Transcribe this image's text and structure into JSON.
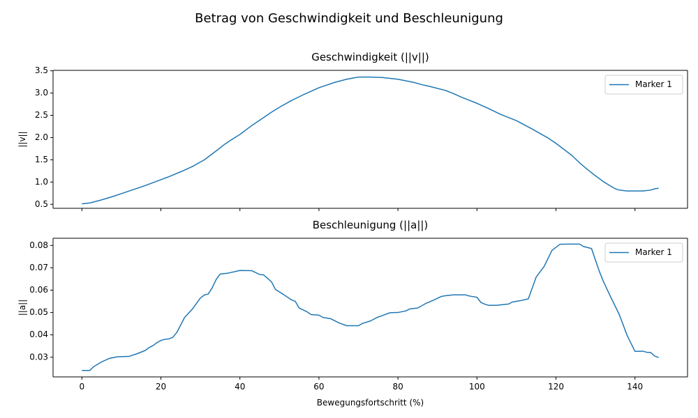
{
  "figure": {
    "suptitle": "Betrag von Geschwindigkeit und Beschleunigung",
    "line_color": "#1f77b4"
  },
  "chart_data": [
    {
      "type": "line",
      "title": "Geschwindigkeit (||v||)",
      "xlabel": "",
      "ylabel": "||v||",
      "xlim": [
        -7.3,
        153.3
      ],
      "ylim": [
        0.41,
        3.51
      ],
      "xticks": [
        0,
        20,
        40,
        60,
        80,
        100,
        120,
        140
      ],
      "xtick_labels_visible": false,
      "yticks": [
        0.5,
        1.0,
        1.5,
        2.0,
        2.5,
        3.0,
        3.5
      ],
      "ytick_labels": [
        "0.5",
        "1.0",
        "1.5",
        "2.0",
        "2.5",
        "3.0",
        "3.5"
      ],
      "legend": "top-right",
      "series": [
        {
          "name": "Marker 1",
          "x": [
            0,
            2,
            5,
            8,
            10,
            13,
            16,
            19,
            22,
            25,
            28,
            31,
            34,
            36,
            38,
            40,
            43,
            46,
            48,
            50,
            53,
            56,
            60,
            64,
            67,
            70,
            73,
            76,
            80,
            84,
            86,
            88,
            92,
            94,
            96,
            98,
            100,
            103,
            106,
            110,
            114,
            118,
            120,
            124,
            126,
            128,
            130,
            132,
            134,
            135,
            136,
            138,
            142,
            144,
            145,
            146
          ],
          "y": [
            0.51,
            0.53,
            0.6,
            0.68,
            0.74,
            0.83,
            0.92,
            1.02,
            1.12,
            1.23,
            1.35,
            1.5,
            1.7,
            1.84,
            1.96,
            2.07,
            2.27,
            2.45,
            2.57,
            2.68,
            2.83,
            2.96,
            3.12,
            3.24,
            3.31,
            3.36,
            3.36,
            3.35,
            3.31,
            3.24,
            3.19,
            3.15,
            3.06,
            2.99,
            2.91,
            2.84,
            2.77,
            2.65,
            2.52,
            2.38,
            2.19,
            1.99,
            1.87,
            1.6,
            1.43,
            1.28,
            1.14,
            1.01,
            0.9,
            0.85,
            0.82,
            0.8,
            0.8,
            0.82,
            0.85,
            0.86
          ]
        }
      ]
    },
    {
      "type": "line",
      "title": "Beschleunigung (||a||)",
      "xlabel": "Bewegungsfortschritt (%)",
      "ylabel": "||a||",
      "xlim": [
        -7.3,
        153.3
      ],
      "ylim": [
        0.0212,
        0.0832
      ],
      "xticks": [
        0,
        20,
        40,
        60,
        80,
        100,
        120,
        140
      ],
      "xtick_labels": [
        "0",
        "20",
        "40",
        "60",
        "80",
        "100",
        "120",
        "140"
      ],
      "yticks": [
        0.03,
        0.04,
        0.05,
        0.06,
        0.07,
        0.08
      ],
      "ytick_labels": [
        "0.03",
        "0.04",
        "0.05",
        "0.06",
        "0.07",
        "0.08"
      ],
      "legend": "top-right",
      "series": [
        {
          "name": "Marker 1",
          "x": [
            0,
            2,
            3,
            5,
            7,
            9,
            12,
            14,
            16,
            17,
            18,
            19,
            20,
            21,
            22,
            23,
            24,
            26,
            28,
            30,
            31,
            32,
            33,
            34,
            35,
            37,
            40,
            43,
            45,
            46,
            48,
            49,
            51,
            53,
            54,
            55,
            57,
            58,
            60,
            61,
            63,
            65,
            67,
            70,
            71,
            73,
            75,
            76,
            78,
            80,
            82,
            83,
            85,
            87,
            89,
            91,
            92,
            94,
            97,
            98,
            100,
            101,
            102,
            103,
            105,
            108,
            109,
            111,
            113,
            115,
            117,
            119,
            121,
            123,
            126,
            127,
            129,
            130,
            131,
            132,
            134,
            136,
            138,
            140,
            142,
            143,
            144,
            145,
            146
          ],
          "y": [
            0.0241,
            0.0241,
            0.0258,
            0.0279,
            0.0295,
            0.0302,
            0.0304,
            0.0316,
            0.033,
            0.0343,
            0.0352,
            0.0365,
            0.0375,
            0.038,
            0.0382,
            0.0389,
            0.041,
            0.0478,
            0.0516,
            0.0565,
            0.0578,
            0.0583,
            0.0611,
            0.0648,
            0.0672,
            0.0676,
            0.0688,
            0.0687,
            0.067,
            0.0668,
            0.0637,
            0.0603,
            0.0581,
            0.0557,
            0.055,
            0.052,
            0.0503,
            0.0491,
            0.0488,
            0.0478,
            0.0472,
            0.0454,
            0.0441,
            0.0441,
            0.0451,
            0.0462,
            0.048,
            0.0486,
            0.0499,
            0.05,
            0.0507,
            0.0516,
            0.052,
            0.054,
            0.0555,
            0.0572,
            0.0575,
            0.0579,
            0.0579,
            0.0574,
            0.0568,
            0.0545,
            0.0537,
            0.0532,
            0.0532,
            0.0538,
            0.0547,
            0.0553,
            0.0561,
            0.0659,
            0.0706,
            0.0778,
            0.0805,
            0.0806,
            0.0806,
            0.0795,
            0.0786,
            0.0734,
            0.0683,
            0.0639,
            0.0564,
            0.0492,
            0.0398,
            0.0326,
            0.0327,
            0.0322,
            0.0321,
            0.0305,
            0.0299
          ]
        }
      ]
    }
  ]
}
